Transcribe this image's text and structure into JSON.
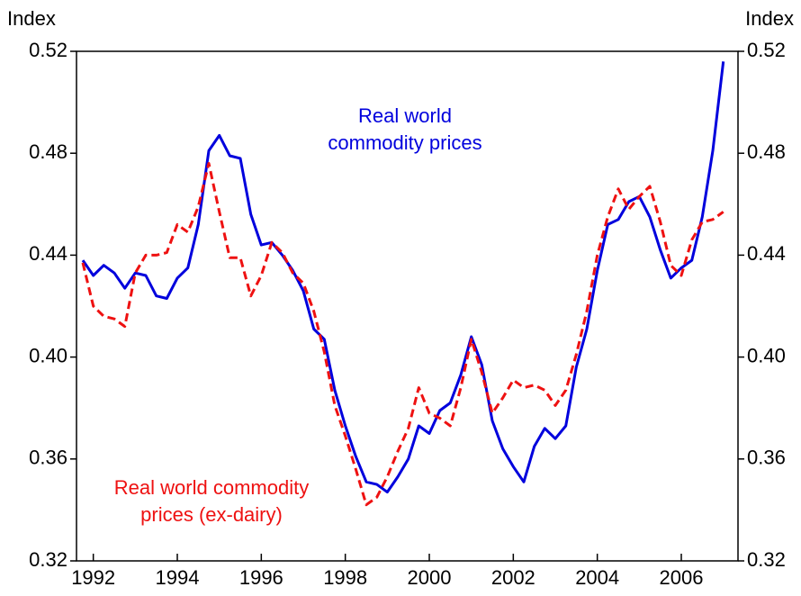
{
  "chart_data": {
    "type": "line",
    "y_label": "Index",
    "y2_label": "Index",
    "x": [
      1991.75,
      1992,
      1992.25,
      1992.5,
      1992.75,
      1993,
      1993.25,
      1993.5,
      1993.75,
      1994,
      1994.25,
      1994.5,
      1994.75,
      1995,
      1995.25,
      1995.5,
      1995.75,
      1996,
      1996.25,
      1996.5,
      1996.75,
      1997,
      1997.25,
      1997.5,
      1997.75,
      1998,
      1998.25,
      1998.5,
      1998.75,
      1999,
      1999.25,
      1999.5,
      1999.75,
      2000,
      2000.25,
      2000.5,
      2000.75,
      2001,
      2001.25,
      2001.5,
      2001.75,
      2002,
      2002.25,
      2002.5,
      2002.75,
      2003,
      2003.25,
      2003.5,
      2003.75,
      2004,
      2004.25,
      2004.5,
      2004.75,
      2005,
      2005.25,
      2005.5,
      2005.75,
      2006,
      2006.25,
      2006.5,
      2006.75,
      2007
    ],
    "series": [
      {
        "name": "Real world commodity prices",
        "color": "#0000dd",
        "dash": false,
        "label_lines": [
          "Real world",
          "commodity prices"
        ],
        "values": [
          0.438,
          0.432,
          0.436,
          0.433,
          0.427,
          0.433,
          0.432,
          0.424,
          0.423,
          0.431,
          0.435,
          0.452,
          0.481,
          0.487,
          0.479,
          0.478,
          0.456,
          0.444,
          0.445,
          0.44,
          0.434,
          0.426,
          0.411,
          0.407,
          0.387,
          0.373,
          0.361,
          0.351,
          0.35,
          0.347,
          0.353,
          0.36,
          0.373,
          0.37,
          0.379,
          0.382,
          0.393,
          0.408,
          0.397,
          0.375,
          0.364,
          0.357,
          0.351,
          0.365,
          0.372,
          0.368,
          0.373,
          0.396,
          0.411,
          0.434,
          0.452,
          0.454,
          0.461,
          0.463,
          0.455,
          0.442,
          0.431,
          0.435,
          0.438,
          0.455,
          0.481,
          0.516
        ]
      },
      {
        "name": "Real world commodity prices (ex-dairy)",
        "color": "#ee1111",
        "dash": true,
        "label_lines": [
          "Real world commodity",
          "prices (ex-dairy)"
        ],
        "values": [
          0.437,
          0.42,
          0.416,
          0.415,
          0.412,
          0.433,
          0.44,
          0.44,
          0.441,
          0.452,
          0.449,
          0.459,
          0.476,
          0.457,
          0.439,
          0.439,
          0.424,
          0.432,
          0.445,
          0.441,
          0.433,
          0.429,
          0.418,
          0.402,
          0.381,
          0.369,
          0.356,
          0.342,
          0.345,
          0.353,
          0.363,
          0.372,
          0.388,
          0.378,
          0.376,
          0.373,
          0.388,
          0.407,
          0.394,
          0.378,
          0.384,
          0.391,
          0.388,
          0.389,
          0.387,
          0.381,
          0.387,
          0.401,
          0.418,
          0.44,
          0.455,
          0.466,
          0.458,
          0.463,
          0.467,
          0.453,
          0.436,
          0.432,
          0.446,
          0.453,
          0.454,
          0.457
        ]
      }
    ],
    "xlim": [
      1991.6,
      2007.35
    ],
    "xticks": [
      1992,
      1994,
      1996,
      1998,
      2000,
      2002,
      2004,
      2006
    ],
    "ylim": [
      0.32,
      0.52
    ],
    "yticks": [
      {
        "value": 0.32,
        "label": "0.32"
      },
      {
        "value": 0.36,
        "label": "0.36"
      },
      {
        "value": 0.4,
        "label": "0.40"
      },
      {
        "value": 0.44,
        "label": "0.44"
      },
      {
        "value": 0.48,
        "label": "0.48"
      },
      {
        "value": 0.52,
        "label": "0.52"
      }
    ],
    "y2lim": [
      0.32,
      0.52
    ],
    "y2ticks": [
      {
        "value": 0.32,
        "label": "0.32"
      },
      {
        "value": 0.36,
        "label": "0.36"
      },
      {
        "value": 0.4,
        "label": "0.40"
      },
      {
        "value": 0.44,
        "label": "0.44"
      },
      {
        "value": 0.48,
        "label": "0.48"
      },
      {
        "value": 0.52,
        "label": "0.52"
      }
    ]
  }
}
